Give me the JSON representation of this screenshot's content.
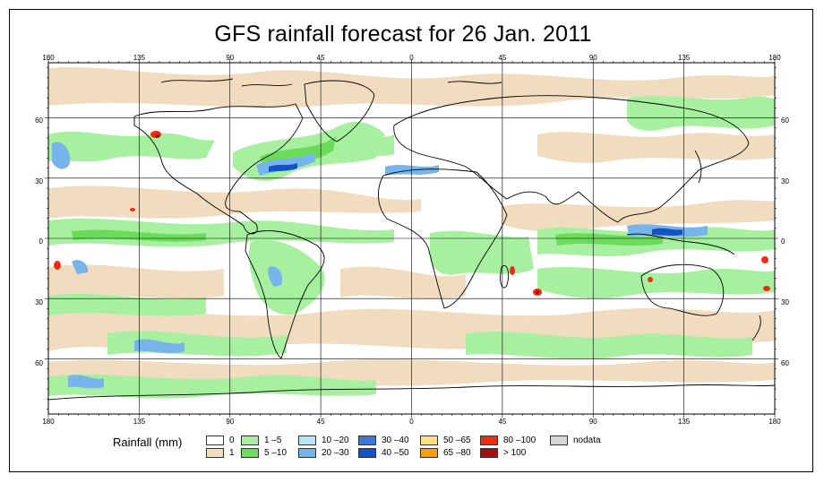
{
  "title": "GFS rainfall forecast for 26 Jan. 2011",
  "axes": {
    "top_lon_labels": [
      "180",
      "135",
      "90",
      "45",
      "0",
      "45",
      "90",
      "135",
      "180"
    ],
    "bottom_lon_labels": [
      "180",
      "135",
      "90",
      "45",
      "0",
      "45",
      "90",
      "135",
      "180"
    ],
    "left_lat_labels": [
      "60",
      "30",
      "0",
      "30",
      "60"
    ],
    "right_lat_labels": [
      "60",
      "30",
      "0",
      "30",
      "60"
    ]
  },
  "legend": {
    "title": "Rainfall (mm)",
    "items": [
      {
        "label": "0",
        "color": "#ffffff"
      },
      {
        "label": "1",
        "color": "#f1dcc0"
      },
      {
        "label": "1 –5",
        "color": "#a6f0a0"
      },
      {
        "label": "5 –10",
        "color": "#6bdc5a"
      },
      {
        "label": "10 –20",
        "color": "#b8e6f6"
      },
      {
        "label": "20 –30",
        "color": "#78b4ec"
      },
      {
        "label": "30 –40",
        "color": "#3a78dc"
      },
      {
        "label": "40 –50",
        "color": "#1450c8"
      },
      {
        "label": "50 –65",
        "color": "#ffe080"
      },
      {
        "label": "65 –80",
        "color": "#f5a010"
      },
      {
        "label": "80 –100",
        "color": "#ee2c10"
      },
      {
        "label": "> 100",
        "color": "#a01010"
      },
      {
        "label": "nodata",
        "color": "#d6d6d6"
      }
    ]
  },
  "colors": {
    "rain_light": "#f1dcc0",
    "rain_green": "#a6f0a0",
    "rain_blue": "#78b4ec",
    "rain_darkblue": "#1450c8",
    "rain_red": "#ee2c10",
    "coastline": "#000000"
  }
}
